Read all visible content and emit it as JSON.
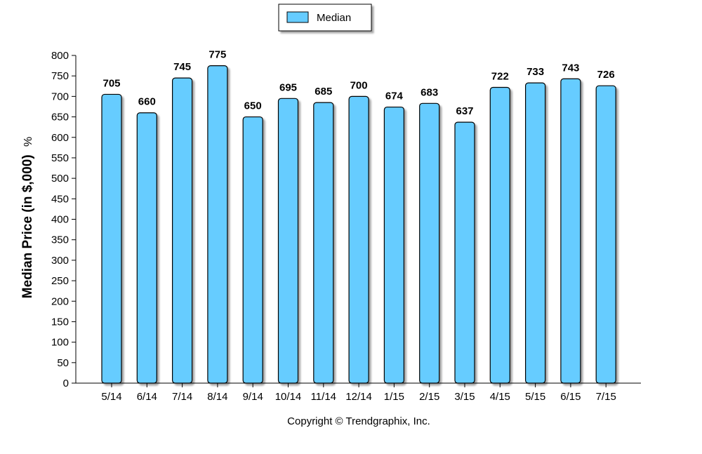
{
  "chart_data": {
    "type": "bar",
    "legend": {
      "label": "Median",
      "placement": "top-center"
    },
    "ylabel": "Median Price (in $,000)",
    "ylabel_suffix": "%",
    "categories": [
      "5/14",
      "6/14",
      "7/14",
      "8/14",
      "9/14",
      "10/14",
      "11/14",
      "12/14",
      "1/15",
      "2/15",
      "3/15",
      "4/15",
      "5/15",
      "6/15",
      "7/15"
    ],
    "values": [
      705,
      660,
      745,
      775,
      650,
      695,
      685,
      700,
      674,
      683,
      637,
      722,
      733,
      743,
      726
    ],
    "ylim": [
      0,
      800
    ],
    "yticks": [
      0,
      50,
      100,
      150,
      200,
      250,
      300,
      350,
      400,
      450,
      500,
      550,
      600,
      650,
      700,
      750,
      800
    ],
    "grid": false,
    "bar_color": "#66ccff",
    "bar_edge_color": "#000000",
    "show_data_labels": true
  },
  "footer": {
    "copyright": "Copyright © Trendgraphix, Inc."
  }
}
